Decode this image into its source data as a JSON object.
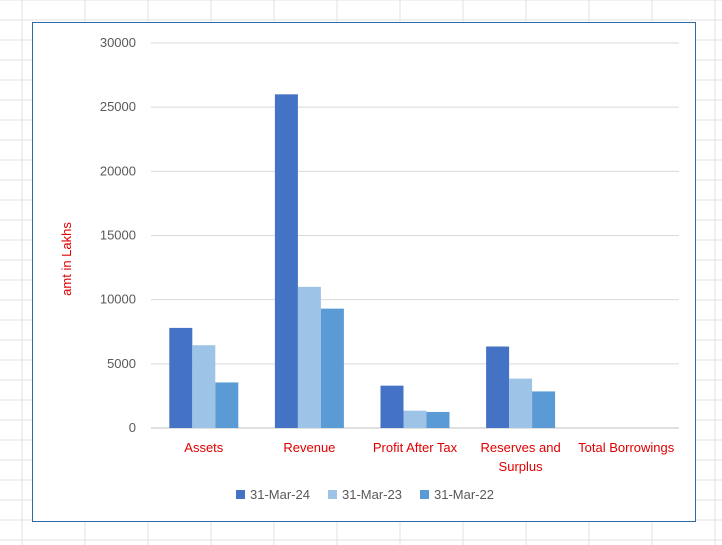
{
  "chart_data": {
    "type": "bar",
    "categories": [
      [
        "Assets"
      ],
      [
        "Revenue"
      ],
      [
        "Profit After Tax"
      ],
      [
        "Reserves and",
        "Surplus"
      ],
      [
        "Total Borrowings"
      ]
    ],
    "series": [
      {
        "name": "31-Mar-24",
        "color": "#4472c4",
        "values": [
          7800,
          26000,
          3300,
          6350,
          0
        ]
      },
      {
        "name": "31-Mar-23",
        "color": "#9dc3e6",
        "values": [
          6450,
          11000,
          1350,
          3850,
          0
        ]
      },
      {
        "name": "31-Mar-22",
        "color": "#5b9bd5",
        "values": [
          3550,
          9300,
          1250,
          2850,
          0
        ]
      }
    ],
    "title": "",
    "xlabel": "",
    "ylabel": "amt in Lakhs",
    "ylim": [
      0,
      30000
    ],
    "yticks": [
      0,
      5000,
      10000,
      15000,
      20000,
      25000,
      30000
    ],
    "grid": true,
    "legend": "bottom",
    "label_color": "#e00000"
  }
}
